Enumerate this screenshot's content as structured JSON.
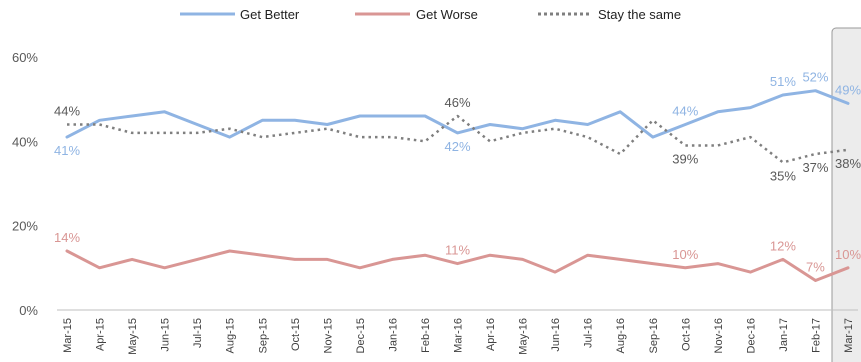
{
  "chart_data": {
    "type": "line",
    "title": "",
    "xlabel": "",
    "ylabel": "",
    "ylim": [
      0,
      60
    ],
    "yticks": [
      "0%",
      "20%",
      "40%",
      "60%"
    ],
    "ytick_values": [
      0,
      20,
      40,
      60
    ],
    "grid": false,
    "legend_position": "top",
    "highlight_last_category": true,
    "categories": [
      "Mar-15",
      "Apr-15",
      "May-15",
      "Jun-15",
      "Jul-15",
      "Aug-15",
      "Sep-15",
      "Oct-15",
      "Nov-15",
      "Dec-15",
      "Jan-16",
      "Feb-16",
      "Mar-16",
      "Apr-16",
      "May-16",
      "Jun-16",
      "Jul-16",
      "Aug-16",
      "Sep-16",
      "Oct-16",
      "Nov-16",
      "Dec-16",
      "Jan-17",
      "Feb-17",
      "Mar-17"
    ],
    "series": [
      {
        "name": "Get Better",
        "color": "#8fb4e3",
        "style": "solid",
        "values": [
          41,
          45,
          46,
          47,
          44,
          41,
          45,
          45,
          44,
          46,
          46,
          46,
          42,
          44,
          43,
          45,
          44,
          47,
          41,
          44,
          47,
          48,
          51,
          52,
          49
        ],
        "labels": [
          {
            "index": 0,
            "text": "41%",
            "pos": "below"
          },
          {
            "index": 12,
            "text": "42%",
            "pos": "below"
          },
          {
            "index": 19,
            "text": "44%",
            "pos": "above"
          },
          {
            "index": 22,
            "text": "51%",
            "pos": "above"
          },
          {
            "index": 23,
            "text": "52%",
            "pos": "above"
          },
          {
            "index": 24,
            "text": "49%",
            "pos": "above"
          }
        ]
      },
      {
        "name": "Get Worse",
        "color": "#d99694",
        "style": "solid",
        "values": [
          14,
          10,
          12,
          10,
          12,
          14,
          13,
          12,
          12,
          10,
          12,
          13,
          11,
          13,
          12,
          9,
          13,
          12,
          11,
          10,
          11,
          9,
          12,
          7,
          10
        ],
        "labels": [
          {
            "index": 0,
            "text": "14%",
            "pos": "above"
          },
          {
            "index": 12,
            "text": "11%",
            "pos": "above"
          },
          {
            "index": 19,
            "text": "10%",
            "pos": "above"
          },
          {
            "index": 22,
            "text": "12%",
            "pos": "above"
          },
          {
            "index": 23,
            "text": "7%",
            "pos": "above"
          },
          {
            "index": 24,
            "text": "10%",
            "pos": "above"
          }
        ]
      },
      {
        "name": "Stay the same",
        "color": "#7f7f7f",
        "style": "dotted",
        "values": [
          44,
          44,
          42,
          42,
          42,
          43,
          41,
          42,
          43,
          41,
          41,
          40,
          46,
          40,
          42,
          43,
          41,
          37,
          45,
          39,
          39,
          41,
          35,
          37,
          38
        ],
        "labels": [
          {
            "index": 0,
            "text": "44%",
            "pos": "above"
          },
          {
            "index": 12,
            "text": "46%",
            "pos": "above"
          },
          {
            "index": 19,
            "text": "39%",
            "pos": "below"
          },
          {
            "index": 22,
            "text": "35%",
            "pos": "below"
          },
          {
            "index": 23,
            "text": "37%",
            "pos": "below"
          },
          {
            "index": 24,
            "text": "38%",
            "pos": "below"
          }
        ]
      }
    ]
  }
}
